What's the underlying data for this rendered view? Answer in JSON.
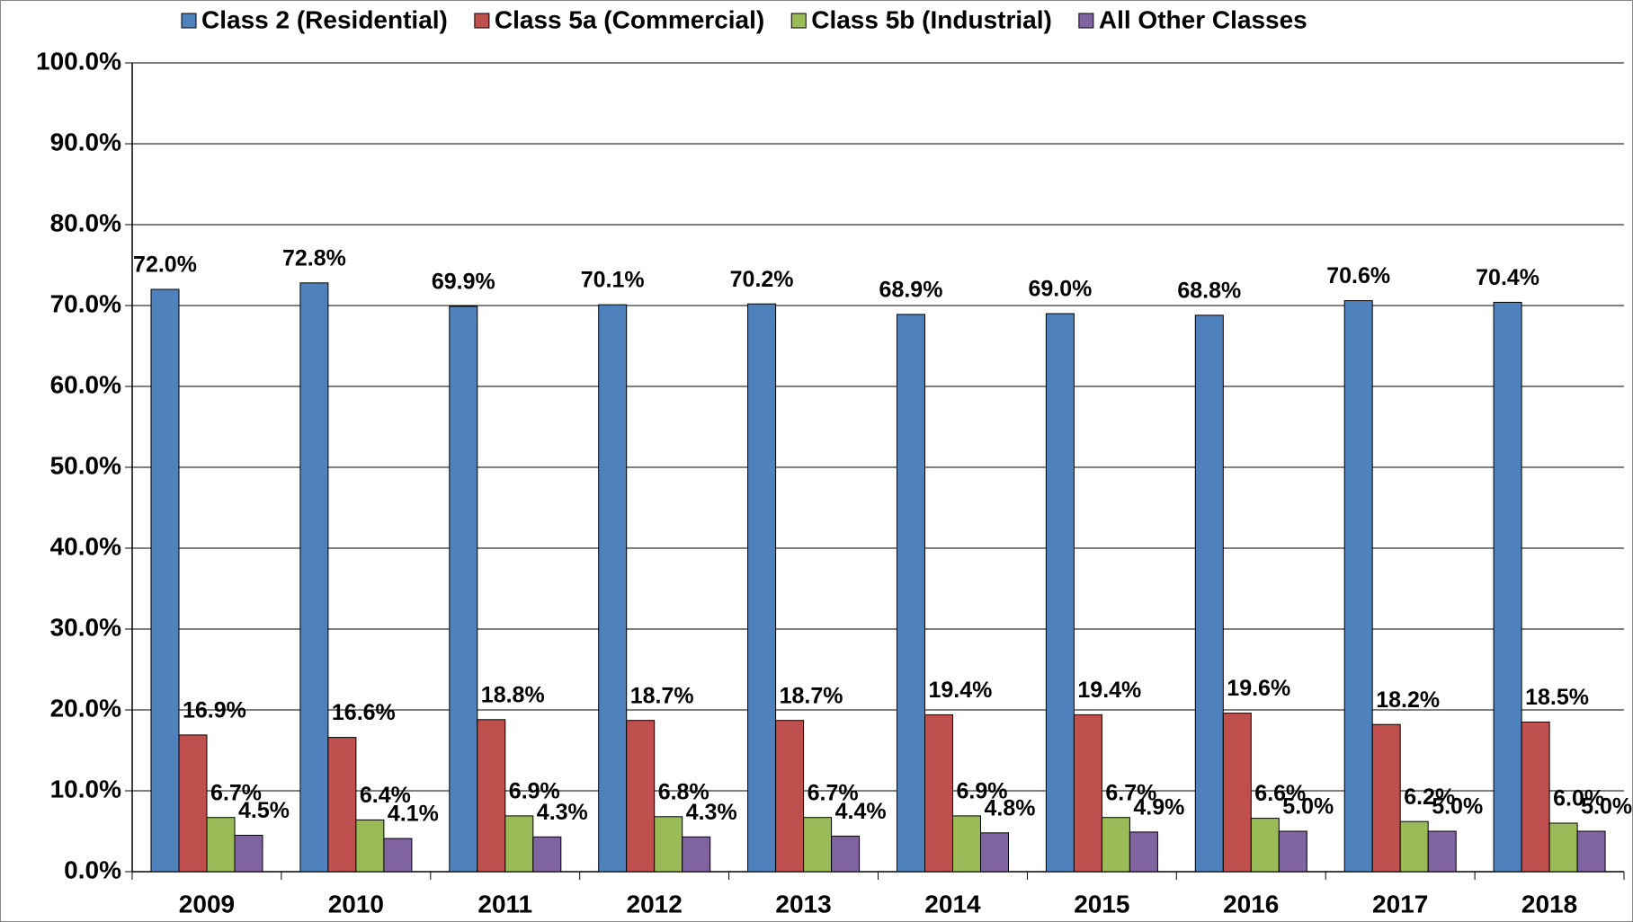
{
  "chart_data": {
    "type": "bar",
    "categories": [
      "2009",
      "2010",
      "2011",
      "2012",
      "2013",
      "2014",
      "2015",
      "2016",
      "2017",
      "2018"
    ],
    "series": [
      {
        "name": "Class 2 (Residential)",
        "color": "#4f81bd",
        "values": [
          72.0,
          72.8,
          69.9,
          70.1,
          70.2,
          68.9,
          69.0,
          68.8,
          70.6,
          70.4
        ],
        "value_labels": [
          "72.0%",
          "72.8%",
          "69.9%",
          "70.1%",
          "70.2%",
          "68.9%",
          "69.0%",
          "68.8%",
          "70.6%",
          "70.4%"
        ]
      },
      {
        "name": "Class 5a (Commercial)",
        "color": "#c0504d",
        "values": [
          16.9,
          16.6,
          18.8,
          18.7,
          18.7,
          19.4,
          19.4,
          19.6,
          18.2,
          18.5
        ],
        "value_labels": [
          "16.9%",
          "16.6%",
          "18.8%",
          "18.7%",
          "18.7%",
          "19.4%",
          "19.4%",
          "19.6%",
          "18.2%",
          "18.5%"
        ]
      },
      {
        "name": "Class 5b (Industrial)",
        "color": "#9bbb59",
        "values": [
          6.7,
          6.4,
          6.9,
          6.8,
          6.7,
          6.9,
          6.7,
          6.6,
          6.2,
          6.0
        ],
        "value_labels": [
          "6.7%",
          "6.4%",
          "6.9%",
          "6.8%",
          "6.7%",
          "6.9%",
          "6.7%",
          "6.6%",
          "6.2%",
          "6.0%"
        ]
      },
      {
        "name": "All Other Classes",
        "color": "#8064a2",
        "values": [
          4.5,
          4.1,
          4.3,
          4.3,
          4.4,
          4.8,
          4.9,
          5.0,
          5.0,
          5.0
        ],
        "value_labels": [
          "4.5%",
          "4.1%",
          "4.3%",
          "4.3%",
          "4.4%",
          "4.8%",
          "4.9%",
          "5.0%",
          "5.0%",
          "5.0%"
        ]
      }
    ],
    "ylim": [
      0,
      100
    ],
    "yticks": [
      {
        "value": 0,
        "label": "0.0%"
      },
      {
        "value": 10,
        "label": "10.0%"
      },
      {
        "value": 20,
        "label": "20.0%"
      },
      {
        "value": 30,
        "label": "30.0%"
      },
      {
        "value": 40,
        "label": "40.0%"
      },
      {
        "value": 50,
        "label": "50.0%"
      },
      {
        "value": 60,
        "label": "60.0%"
      },
      {
        "value": 70,
        "label": "70.0%"
      },
      {
        "value": 80,
        "label": "80.0%"
      },
      {
        "value": 90,
        "label": "90.0%"
      },
      {
        "value": 100,
        "label": "100.0%"
      }
    ],
    "grid": true,
    "legend": "top"
  }
}
